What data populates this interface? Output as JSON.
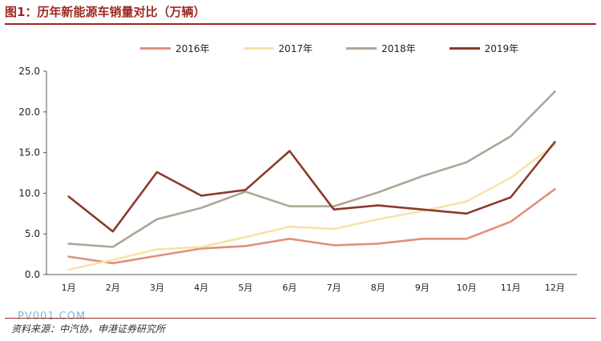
{
  "figure": {
    "title": "图1：历年新能源车销量对比（万辆）",
    "source": "资料来源：中汽协，申港证券研究所",
    "watermark": "PV001.COM"
  },
  "colors": {
    "accent": "#9b2a22",
    "s2016": "#e0907a",
    "s2017": "#f7e3a7",
    "s2018": "#b1a596",
    "s2019": "#8b3a2b"
  },
  "chart_data": {
    "type": "line",
    "title": "历年新能源车销量对比（万辆）",
    "xlabel": "",
    "ylabel": "",
    "categories": [
      "1月",
      "2月",
      "3月",
      "4月",
      "5月",
      "6月",
      "7月",
      "8月",
      "9月",
      "10月",
      "11月",
      "12月"
    ],
    "ylim": [
      0,
      25
    ],
    "yticks": [
      "0.0",
      "5.0",
      "10.0",
      "15.0",
      "20.0",
      "25.0"
    ],
    "legend_position": "top",
    "grid": false,
    "series": [
      {
        "name": "2016年",
        "color_key": "s2016",
        "values": [
          2.2,
          1.4,
          2.3,
          3.2,
          3.5,
          4.4,
          3.6,
          3.8,
          4.4,
          4.4,
          6.5,
          10.5
        ]
      },
      {
        "name": "2017年",
        "color_key": "s2017",
        "values": [
          0.6,
          1.8,
          3.1,
          3.4,
          4.6,
          5.9,
          5.6,
          6.8,
          7.8,
          9.0,
          11.9,
          16.0
        ]
      },
      {
        "name": "2018年",
        "color_key": "s2018",
        "values": [
          3.8,
          3.4,
          6.8,
          8.2,
          10.2,
          8.4,
          8.4,
          10.1,
          12.1,
          13.8,
          17.0,
          22.5
        ]
      },
      {
        "name": "2019年",
        "color_key": "s2019",
        "values": [
          9.6,
          5.3,
          12.6,
          9.7,
          10.4,
          15.2,
          8.0,
          8.5,
          8.0,
          7.5,
          9.5,
          16.3
        ]
      }
    ]
  }
}
